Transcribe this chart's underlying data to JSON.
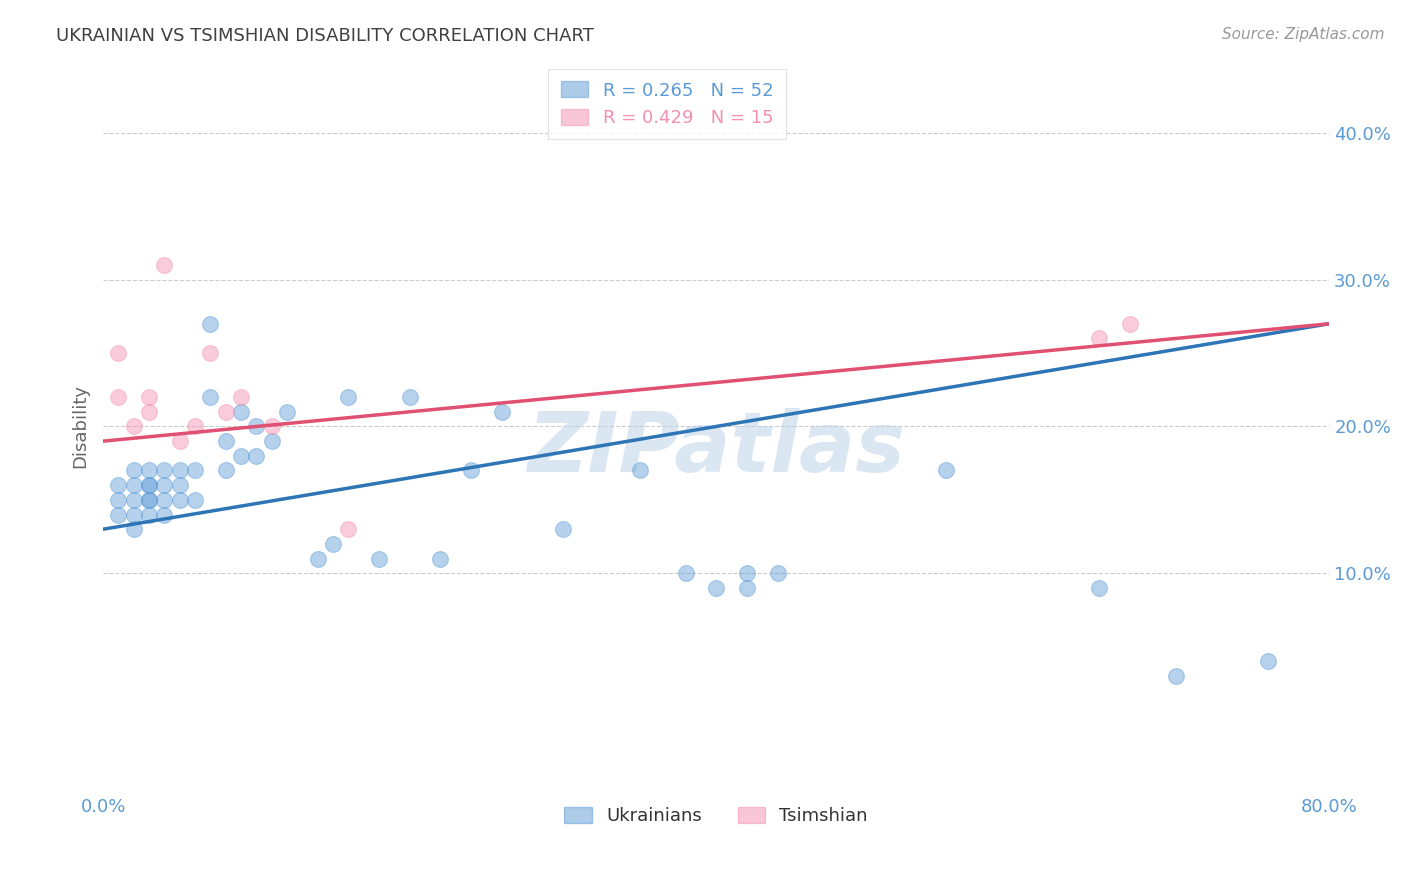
{
  "title": "UKRAINIAN VS TSIMSHIAN DISABILITY CORRELATION CHART",
  "source": "Source: ZipAtlas.com",
  "ylabel": "Disability",
  "xlim": [
    0.0,
    0.8
  ],
  "ylim": [
    -0.05,
    0.45
  ],
  "ytick_vals": [
    0.1,
    0.2,
    0.3,
    0.4
  ],
  "xtick_vals": [
    0.0,
    0.1,
    0.2,
    0.3,
    0.4,
    0.5,
    0.6,
    0.7,
    0.8
  ],
  "watermark": "ZIPatlas",
  "legend_entries": [
    {
      "label": "R = 0.265   N = 52",
      "color": "#5b9bd5"
    },
    {
      "label": "R = 0.429   N = 15",
      "color": "#f48fb1"
    }
  ],
  "blue_scatter_x": [
    0.01,
    0.01,
    0.01,
    0.02,
    0.02,
    0.02,
    0.02,
    0.02,
    0.03,
    0.03,
    0.03,
    0.03,
    0.03,
    0.03,
    0.04,
    0.04,
    0.04,
    0.04,
    0.05,
    0.05,
    0.05,
    0.06,
    0.06,
    0.07,
    0.07,
    0.08,
    0.08,
    0.09,
    0.09,
    0.1,
    0.1,
    0.11,
    0.12,
    0.14,
    0.15,
    0.16,
    0.18,
    0.2,
    0.22,
    0.24,
    0.26,
    0.3,
    0.35,
    0.38,
    0.4,
    0.42,
    0.42,
    0.44,
    0.55,
    0.65,
    0.7,
    0.76
  ],
  "blue_scatter_y": [
    0.14,
    0.15,
    0.16,
    0.13,
    0.14,
    0.15,
    0.16,
    0.17,
    0.14,
    0.15,
    0.15,
    0.16,
    0.16,
    0.17,
    0.14,
    0.15,
    0.16,
    0.17,
    0.15,
    0.16,
    0.17,
    0.15,
    0.17,
    0.22,
    0.27,
    0.17,
    0.19,
    0.18,
    0.21,
    0.18,
    0.2,
    0.19,
    0.21,
    0.11,
    0.12,
    0.22,
    0.11,
    0.22,
    0.11,
    0.17,
    0.21,
    0.13,
    0.17,
    0.1,
    0.09,
    0.09,
    0.1,
    0.1,
    0.17,
    0.09,
    0.03,
    0.04
  ],
  "pink_scatter_x": [
    0.01,
    0.01,
    0.02,
    0.03,
    0.03,
    0.04,
    0.05,
    0.06,
    0.07,
    0.08,
    0.09,
    0.11,
    0.16,
    0.65,
    0.67
  ],
  "pink_scatter_y": [
    0.22,
    0.25,
    0.2,
    0.21,
    0.22,
    0.31,
    0.19,
    0.2,
    0.25,
    0.21,
    0.22,
    0.2,
    0.13,
    0.26,
    0.27
  ],
  "blue_line_x": [
    0.0,
    0.8
  ],
  "blue_line_y": [
    0.13,
    0.27
  ],
  "pink_line_x": [
    0.0,
    0.8
  ],
  "pink_line_y": [
    0.19,
    0.27
  ],
  "blue_color": "#5b9bd5",
  "pink_color": "#f48fb1",
  "blue_line_color": "#2e75b6",
  "pink_line_color": "#e05070",
  "grid_color": "#cccccc",
  "title_color": "#404040",
  "tick_color": "#5b9bd5",
  "background_color": "#ffffff"
}
